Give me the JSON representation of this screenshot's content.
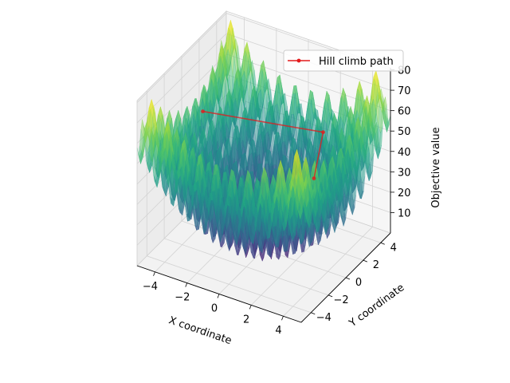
{
  "chart_data": {
    "type": "surface3d",
    "title": "",
    "xlabel": "X coordinate",
    "ylabel": "Y coordinate",
    "zlabel": "Objective value",
    "xlim": [
      -5.12,
      5.12
    ],
    "ylim": [
      -5.12,
      5.12
    ],
    "zlim": [
      0,
      81
    ],
    "xticks": [
      -4,
      -2,
      0,
      2,
      4
    ],
    "yticks": [
      -4,
      -2,
      0,
      2,
      4
    ],
    "zticks": [
      10,
      20,
      30,
      40,
      50,
      60,
      70,
      80
    ],
    "xtick_labels": [
      "−4",
      "−2",
      "0",
      "2",
      "4"
    ],
    "ytick_labels": [
      "−4",
      "−2",
      "0",
      "2",
      "4"
    ],
    "ztick_labels": [
      "10",
      "20",
      "30",
      "40",
      "50",
      "60",
      "70",
      "80"
    ],
    "surface": {
      "function": "rastrigin",
      "colormap": "viridis",
      "alpha": 0.5
    },
    "grid": true,
    "legend": {
      "position": "top-right",
      "entries": [
        "Hill climb path"
      ]
    },
    "series": [
      {
        "name": "Hill climb path",
        "color": "#e41a1c",
        "points": [
          {
            "x": -4.4,
            "y": 1.1,
            "z": 51
          },
          {
            "x": 1.2,
            "y": 4.6,
            "z": 41
          },
          {
            "x": 1.5,
            "y": 3.0,
            "z": 26
          }
        ]
      }
    ]
  }
}
